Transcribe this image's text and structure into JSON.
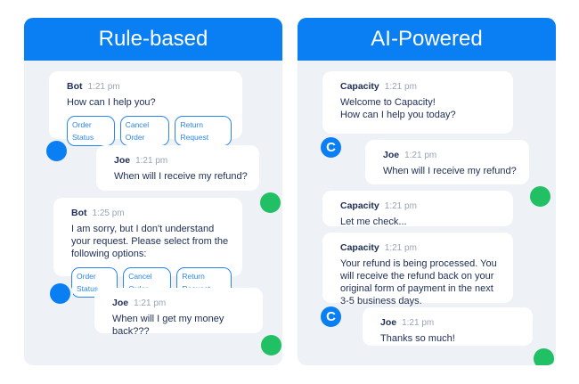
{
  "left": {
    "title": "Rule-based",
    "messages": [
      {
        "name": "Bot",
        "time": "1:21 pm",
        "text": "How can I help you?",
        "options": [
          "Order Status",
          "Cancel Order",
          "Return Request"
        ]
      },
      {
        "name": "Joe",
        "time": "1:21 pm",
        "text": "When will I receive my refund?"
      },
      {
        "name": "Bot",
        "time": "1:25 pm",
        "text": "I am sorry, but I don't understand\nyour request. Please select from the\nfollowing options:",
        "options": [
          "Order Status",
          "Cancel Order",
          "Return Request"
        ]
      },
      {
        "name": "Joe",
        "time": "1:21 pm",
        "text": "When will I get my money back???"
      }
    ]
  },
  "right": {
    "title": "AI-Powered",
    "bot_avatar": "C",
    "messages": [
      {
        "name": "Capacity",
        "time": "1:21 pm",
        "text": "Welcome to Capacity!\nHow can I help you today?"
      },
      {
        "name": "Joe",
        "time": "1:21 pm",
        "text": "When will I receive my refund?"
      },
      {
        "name": "Capacity",
        "time": "1:21 pm",
        "text": "Let me check..."
      },
      {
        "name": "Capacity",
        "time": "1:21 pm",
        "text": "Your refund is being processed. You\nwill receive the refund back on your\noriginal form of payment in the next\n3-5 business days."
      },
      {
        "name": "Joe",
        "time": "1:21 pm",
        "text": "Thanks so much!"
      }
    ]
  },
  "colors": {
    "accent": "#0a7ff3",
    "user": "#22c064",
    "panel": "#eef2f7",
    "text": "#1d2d55"
  }
}
